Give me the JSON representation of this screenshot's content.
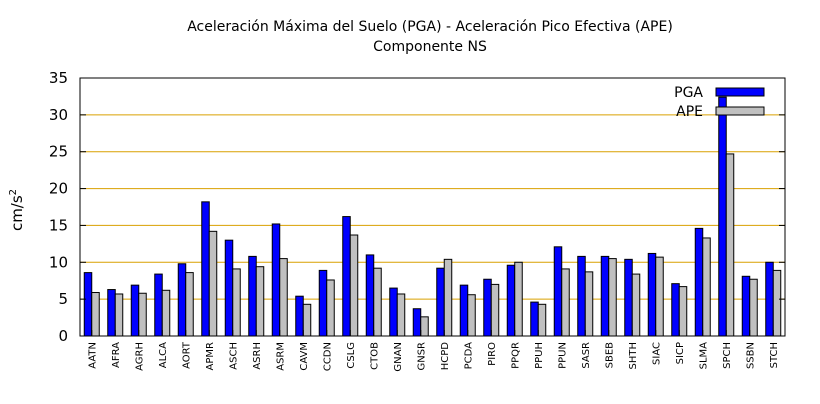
{
  "chart_data": {
    "type": "bar",
    "title": "Aceleración Máxima del Suelo (PGA) -  Aceleración Pico Efectiva (APE)",
    "subtitle": "Componente NS",
    "ylabel": "cm/s",
    "ylabel_sup": "2",
    "xlabel": "",
    "ylim": [
      0,
      35
    ],
    "yticks": [
      0,
      5,
      10,
      15,
      20,
      25,
      30,
      35
    ],
    "grid": "horizontal",
    "legend_position": "top-right",
    "categories": [
      "AATN",
      "AFRA",
      "AGRH",
      "ALCA",
      "AORT",
      "APMR",
      "ASCH",
      "ASRH",
      "ASRM",
      "CAVM",
      "CCDN",
      "CSLG",
      "CTOB",
      "GNAN",
      "GNSR",
      "HCPD",
      "PCDA",
      "PIRO",
      "PPQR",
      "PPUH",
      "PPUN",
      "SASR",
      "SBEB",
      "SHTH",
      "SIAC",
      "SICP",
      "SLMA",
      "SPCH",
      "SSBN",
      "STCH"
    ],
    "series": [
      {
        "name": "PGA",
        "color": "#0000ff",
        "values": [
          8.6,
          6.3,
          6.9,
          8.4,
          9.8,
          18.2,
          13.0,
          10.8,
          15.2,
          5.4,
          8.9,
          16.2,
          11.0,
          6.5,
          3.7,
          9.2,
          6.9,
          7.7,
          9.6,
          4.6,
          12.1,
          10.8,
          10.8,
          10.4,
          11.2,
          7.1,
          14.6,
          32.4,
          8.1,
          10.0
        ]
      },
      {
        "name": "APE",
        "color": "#c0c0c0",
        "values": [
          5.9,
          5.7,
          5.8,
          6.2,
          8.6,
          14.2,
          9.1,
          9.4,
          10.5,
          4.3,
          7.6,
          13.7,
          9.2,
          5.7,
          2.6,
          10.4,
          5.6,
          7.0,
          10.0,
          4.3,
          9.1,
          8.7,
          10.5,
          8.4,
          10.7,
          6.7,
          13.3,
          24.7,
          7.7,
          8.9
        ]
      }
    ]
  }
}
